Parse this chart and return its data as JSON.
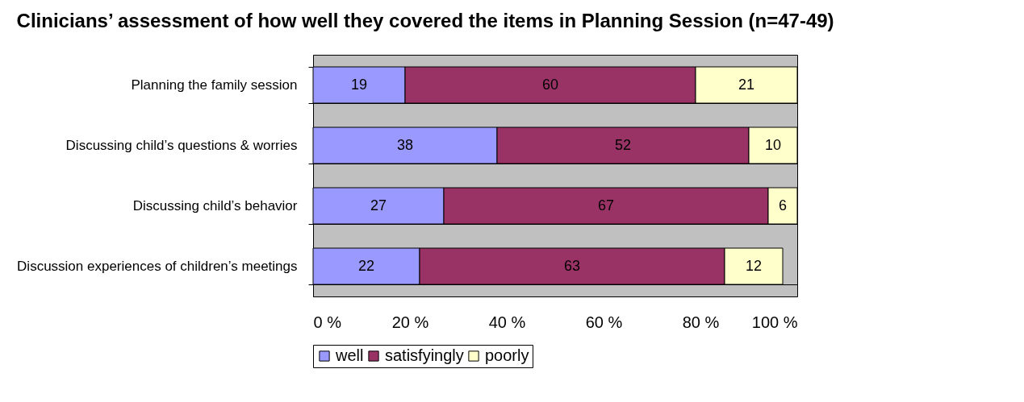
{
  "chart_data": {
    "type": "bar",
    "orientation": "horizontal",
    "stacked": true,
    "title": "Clinicians’ assessment of how well they covered the items in Planning Session (n=47-49)",
    "categories": [
      "Planning the family session",
      "Discussing child’s questions  & worries",
      "Discussing child’s behavior",
      "Discussion experiences of children’s meetings"
    ],
    "series": [
      {
        "name": "well",
        "color": "#9999ff",
        "values": [
          19,
          38,
          27,
          22
        ]
      },
      {
        "name": "satisfyingly",
        "color": "#993366",
        "values": [
          60,
          52,
          67,
          63
        ]
      },
      {
        "name": "poorly",
        "color": "#ffffcc",
        "values": [
          21,
          10,
          6,
          12
        ]
      }
    ],
    "xlim": [
      0,
      100
    ],
    "xticks": [
      {
        "value": 0,
        "label": "0 %"
      },
      {
        "value": 20,
        "label": "20 %"
      },
      {
        "value": 40,
        "label": "40 %"
      },
      {
        "value": 60,
        "label": "60 %"
      },
      {
        "value": 80,
        "label": "80 %"
      },
      {
        "value": 100,
        "label": "100 %"
      }
    ],
    "data_labels": true,
    "grid": "y",
    "legend": "bottom"
  }
}
